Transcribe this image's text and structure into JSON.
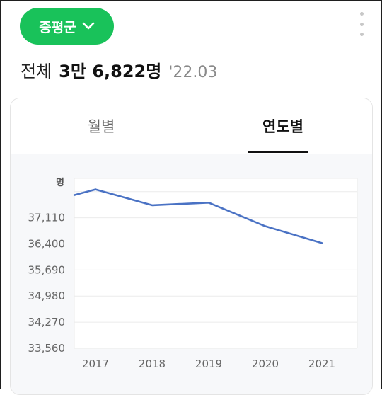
{
  "header": {
    "region_label": "증평군",
    "region_icon": "chevron-down-icon",
    "more_icon": "more-vertical-icon"
  },
  "summary": {
    "label": "전체",
    "value": "3만 6,822명",
    "date": "'22.03"
  },
  "tabs": [
    {
      "label": "월별",
      "active": false
    },
    {
      "label": "연도별",
      "active": true
    }
  ],
  "colors": {
    "accent": "#19c25a",
    "line": "#4a72c4"
  },
  "chart_data": {
    "type": "line",
    "unit_label": "명",
    "categories": [
      "2017",
      "2018",
      "2019",
      "2020",
      "2021"
    ],
    "series": [
      {
        "values": [
          37880,
          37450,
          37520,
          36880,
          36420
        ]
      }
    ],
    "y_ticks": [
      33560,
      34270,
      34980,
      35690,
      36400,
      37110
    ],
    "y_tick_labels": [
      "33,560",
      "34,270",
      "34,980",
      "35,690",
      "36,400",
      "37,110"
    ],
    "ylim": [
      33560,
      38180
    ],
    "grid": true
  }
}
